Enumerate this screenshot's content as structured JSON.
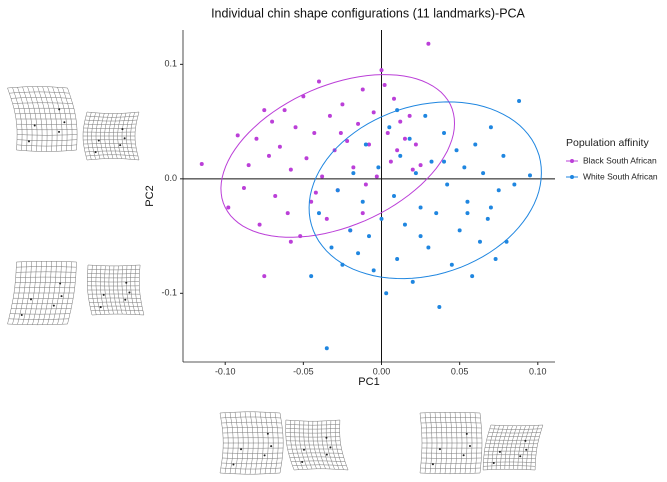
{
  "chart_data": {
    "type": "scatter",
    "title": "Individual chin shape configurations (11 landmarks)-PCA",
    "x_label": "PC1",
    "y_label": "PC2",
    "xlim": [
      -0.127,
      0.111
    ],
    "ylim": [
      -0.16,
      0.13
    ],
    "xticks": [
      {
        "value": -0.1,
        "label": "-0.10"
      },
      {
        "value": -0.05,
        "label": "-0.05"
      },
      {
        "value": 0,
        "label": "0.00"
      },
      {
        "value": 0.05,
        "label": "0.05"
      },
      {
        "value": 0.1,
        "label": "0.10"
      }
    ],
    "yticks": [
      {
        "value": 0.1,
        "label": "0.1"
      },
      {
        "value": 0,
        "label": "0.0"
      },
      {
        "value": -0.1,
        "label": "-0.1"
      }
    ],
    "reference_lines": {
      "x": 0,
      "y": 0
    },
    "legend_title": "Population affinity",
    "legend_position": "right",
    "series": [
      {
        "name": "Black South African",
        "color": "#bb3fd8",
        "x": [
          -0.115,
          -0.098,
          -0.092,
          -0.088,
          -0.085,
          -0.08,
          -0.078,
          -0.075,
          -0.072,
          -0.07,
          -0.068,
          -0.065,
          -0.062,
          -0.06,
          -0.058,
          -0.055,
          -0.052,
          -0.05,
          -0.048,
          -0.045,
          -0.043,
          -0.04,
          -0.038,
          -0.035,
          -0.033,
          -0.03,
          -0.028,
          -0.025,
          -0.022,
          -0.02,
          -0.018,
          -0.015,
          -0.012,
          -0.01,
          -0.008,
          -0.005,
          -0.003,
          0,
          0.002,
          0.004,
          0.006,
          0.008,
          0.01,
          0.012,
          0.015,
          0.018,
          0.02,
          0.022,
          0.025,
          0.03,
          -0.075,
          -0.058,
          -0.042,
          -0.026,
          -0.012
        ],
        "values": [
          0.013,
          -0.025,
          0.038,
          -0.008,
          0.012,
          0.035,
          -0.04,
          -0.085,
          0.02,
          0.05,
          -0.015,
          0.028,
          0.06,
          -0.03,
          0.008,
          0.045,
          -0.05,
          0.072,
          0.018,
          -0.02,
          0.04,
          0.085,
          0.002,
          -0.035,
          0.055,
          0.025,
          -0.01,
          0.065,
          0.033,
          -0.045,
          0.01,
          0.048,
          0.078,
          -0.005,
          0.03,
          0.058,
          0.002,
          0.095,
          0.082,
          0.04,
          0.015,
          0.07,
          0.025,
          0.05,
          0.035,
          0.055,
          0.008,
          0.03,
          0.012,
          0.118,
          0.06,
          -0.055,
          -0.012,
          0.04,
          -0.03
        ],
        "ellipse": {
          "center": [
            -0.028,
            0.02
          ],
          "u": [
            0.072,
            0.045
          ],
          "v": [
            -0.02,
            0.055
          ]
        }
      },
      {
        "name": "White South African",
        "color": "#1f86e0",
        "x": [
          -0.045,
          -0.04,
          -0.035,
          -0.032,
          -0.028,
          -0.025,
          -0.02,
          -0.018,
          -0.015,
          -0.012,
          -0.01,
          -0.008,
          -0.005,
          -0.002,
          0,
          0.003,
          0.005,
          0.008,
          0.01,
          0.012,
          0.015,
          0.018,
          0.02,
          0.022,
          0.025,
          0.028,
          0.03,
          0.032,
          0.035,
          0.037,
          0.04,
          0.042,
          0.045,
          0.048,
          0.05,
          0.053,
          0.055,
          0.058,
          0.06,
          0.063,
          0.065,
          0.068,
          0.07,
          0.073,
          0.075,
          0.078,
          0.08,
          0.085,
          0.088,
          0.095,
          0.01,
          0.025,
          0.04,
          0.055,
          0.07
        ],
        "values": [
          -0.085,
          -0.03,
          -0.148,
          -0.06,
          -0.01,
          -0.075,
          -0.045,
          0.005,
          -0.065,
          -0.02,
          0.03,
          -0.05,
          -0.08,
          0.01,
          -0.035,
          -0.1,
          0.045,
          -0.015,
          -0.07,
          0.02,
          -0.04,
          0.035,
          -0.09,
          0.005,
          -0.025,
          0.055,
          -0.06,
          0.015,
          -0.03,
          -0.112,
          0.04,
          -0.005,
          -0.075,
          0.025,
          -0.045,
          0.01,
          -0.02,
          -0.085,
          0.03,
          -0.055,
          0.005,
          -0.035,
          0.045,
          -0.07,
          -0.01,
          0.02,
          -0.055,
          -0.005,
          0.068,
          0.003,
          0.06,
          -0.05,
          0.015,
          -0.03,
          -0.025
        ],
        "ellipse": {
          "center": [
            0.028,
            -0.01
          ],
          "u": [
            0.07,
            0.04
          ],
          "v": [
            -0.025,
            0.066
          ]
        }
      }
    ]
  }
}
